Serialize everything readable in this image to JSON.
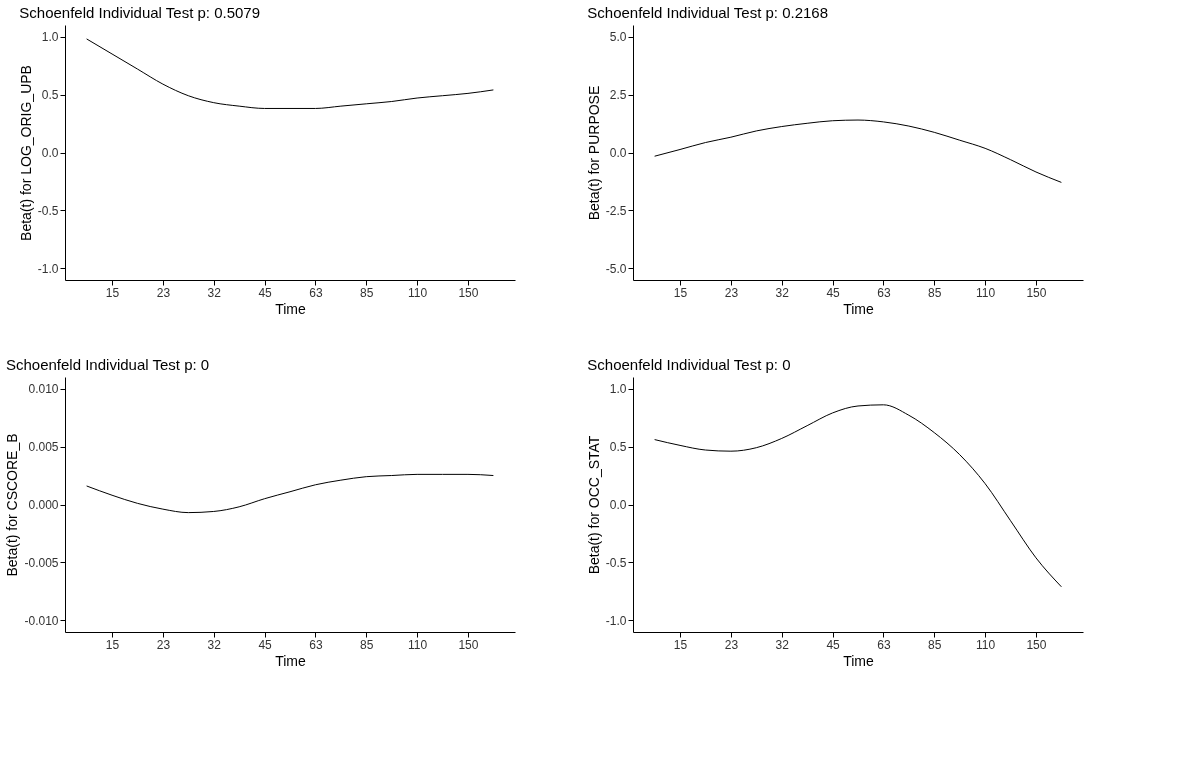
{
  "chart_data": [
    {
      "type": "line",
      "title": "Schoenfeld Individual Test p: 0.5079",
      "xlabel": "Time",
      "ylabel": "Beta(t) for LOG_ORIG_UPB",
      "color": "#000000",
      "grid": false,
      "categories": [
        null,
        "15",
        null,
        "23",
        null,
        "32",
        null,
        "45",
        null,
        "63",
        null,
        "85",
        null,
        "110",
        null,
        "150",
        null
      ],
      "values": [
        0.98,
        0.85,
        0.72,
        0.59,
        0.49,
        0.43,
        0.4,
        0.38,
        0.38,
        0.38,
        0.4,
        0.42,
        0.44,
        0.47,
        0.49,
        0.51,
        0.54
      ],
      "ylim": [
        -1.1,
        1.1
      ],
      "yticks": [
        {
          "value": -1,
          "label": "-1.0"
        },
        {
          "value": -0.5,
          "label": "-0.5"
        },
        {
          "value": 0,
          "label": "0.0"
        },
        {
          "value": 0.5,
          "label": "0.5"
        },
        {
          "value": 1,
          "label": "1.0"
        }
      ]
    },
    {
      "type": "line",
      "title": "Schoenfeld Individual Test p: 0.2168",
      "xlabel": "Time",
      "ylabel": "Beta(t) for PURPOSE",
      "color": "#000000",
      "grid": false,
      "categories": [
        null,
        "15",
        null,
        "23",
        null,
        "32",
        null,
        "45",
        null,
        "63",
        null,
        "85",
        null,
        "110",
        null,
        "150",
        null
      ],
      "values": [
        -0.16,
        0.13,
        0.43,
        0.66,
        0.93,
        1.12,
        1.26,
        1.37,
        1.4,
        1.32,
        1.14,
        0.87,
        0.53,
        0.18,
        -0.31,
        -0.84,
        -1.29
      ],
      "ylim": [
        -5.5,
        5.5
      ],
      "yticks": [
        {
          "value": -5,
          "label": "-5.0"
        },
        {
          "value": -2.5,
          "label": "-2.5"
        },
        {
          "value": 0,
          "label": "0.0"
        },
        {
          "value": 2.5,
          "label": "2.5"
        },
        {
          "value": 5,
          "label": "5.0"
        }
      ]
    },
    {
      "type": "line",
      "title": "Schoenfeld Individual Test p: 0",
      "xlabel": "Time",
      "ylabel": "Beta(t) for CSCORE_B",
      "color": "#000000",
      "grid": false,
      "categories": [
        null,
        "15",
        null,
        "23",
        null,
        "32",
        null,
        "45",
        null,
        "63",
        null,
        "85",
        null,
        "110",
        null,
        "150",
        null
      ],
      "values": [
        0.0016,
        0.0008,
        0.0001,
        -0.0004,
        -0.0007,
        -0.0006,
        -0.0002,
        0.0005,
        0.0011,
        0.0017,
        0.0021,
        0.0024,
        0.0025,
        0.0026,
        0.0026,
        0.0026,
        0.0025
      ],
      "ylim": [
        -0.011,
        0.011
      ],
      "yticks": [
        {
          "value": -0.01,
          "label": "-0.010"
        },
        {
          "value": -0.005,
          "label": "-0.005"
        },
        {
          "value": 0,
          "label": "0.000"
        },
        {
          "value": 0.005,
          "label": "0.005"
        },
        {
          "value": 0.01,
          "label": "0.010"
        }
      ]
    },
    {
      "type": "line",
      "title": "Schoenfeld Individual Test p: 0",
      "xlabel": "Time",
      "ylabel": "Beta(t) for OCC_STAT",
      "color": "#000000",
      "grid": false,
      "categories": [
        null,
        "15",
        null,
        "23",
        null,
        "32",
        null,
        "45",
        null,
        "63",
        null,
        "85",
        null,
        "110",
        null,
        "150",
        null
      ],
      "values": [
        0.56,
        0.51,
        0.47,
        0.46,
        0.49,
        0.57,
        0.68,
        0.79,
        0.85,
        0.86,
        0.77,
        0.62,
        0.43,
        0.18,
        -0.14,
        -0.46,
        -0.71
      ],
      "ylim": [
        -1.1,
        1.1
      ],
      "yticks": [
        {
          "value": -1,
          "label": "-1.0"
        },
        {
          "value": -0.5,
          "label": "-0.5"
        },
        {
          "value": 0,
          "label": "0.0"
        },
        {
          "value": 0.5,
          "label": "0.5"
        },
        {
          "value": 1,
          "label": "1.0"
        }
      ]
    }
  ]
}
